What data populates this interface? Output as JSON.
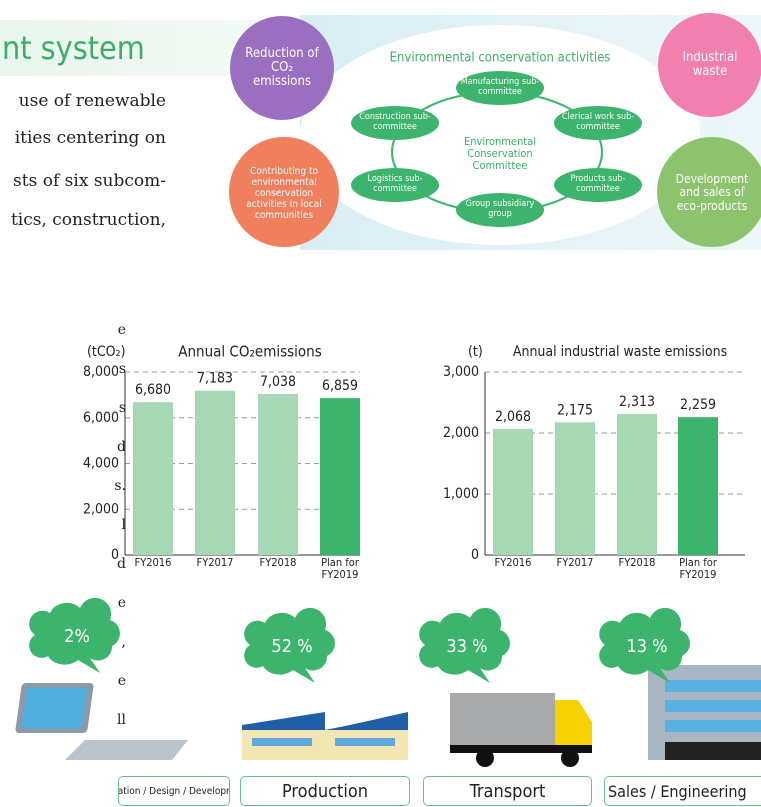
{
  "header": {
    "title": "nt system"
  },
  "intro_lines": [
    "use of renewable",
    "ities centering on",
    "sts of six subcom-",
    "tics, construction,"
  ],
  "diagram": {
    "title": "Environmental conservation activities",
    "center": "Environmental Conservation Committee",
    "committees": [
      "Manufacturing sub-committee",
      "Construction sub-committee",
      "Clerical work sub-committee",
      "Logistics sub-committee",
      "Products sub-committee",
      "Group subsidiary group"
    ],
    "outer": [
      "Reduction of CO₂ emissions",
      "Contributing to environmental conservation activities in local communities",
      "Industrial waste",
      "Development and sales of eco-products"
    ]
  },
  "side_fragments": [
    "e",
    "s",
    "s",
    "d",
    "s.",
    "l",
    "d",
    "e",
    ",",
    "e",
    "ll"
  ],
  "chart_data": [
    {
      "type": "bar",
      "title": "Annual CO₂emissions",
      "y_label": "(tCO₂)",
      "categories": [
        "FY2016",
        "FY2017",
        "FY2018",
        "Plan for FY2019"
      ],
      "values": [
        6680,
        7183,
        7038,
        6859
      ],
      "value_labels": [
        "6,680",
        "7,183",
        "7,038",
        "6,859"
      ],
      "colors": [
        "#a6d8b6",
        "#a6d8b6",
        "#a6d8b6",
        "#3cb46e"
      ],
      "ylim": [
        0,
        8000
      ],
      "yticks": [
        0,
        {
          "value": 2000,
          "label": "2,000"
        },
        {
          "value": 4000,
          "label": "4,000"
        },
        {
          "value": 6000,
          "label": "6,000"
        },
        {
          "value": 8000,
          "label": "8,000"
        }
      ],
      "grid": true
    },
    {
      "type": "bar",
      "title": "Annual industrial waste emissions",
      "y_label": "(t)",
      "categories": [
        "FY2016",
        "FY2017",
        "FY2018",
        "Plan for FY2019"
      ],
      "values": [
        2068,
        2175,
        2313,
        2259
      ],
      "value_labels": [
        "2,068",
        "2,175",
        "2,313",
        "2,259"
      ],
      "colors": [
        "#a6d8b6",
        "#a6d8b6",
        "#a6d8b6",
        "#3cb46e"
      ],
      "ylim": [
        0,
        3000
      ],
      "yticks": [
        0,
        {
          "value": 1000,
          "label": "1,000"
        },
        {
          "value": 2000,
          "label": "2,000"
        },
        {
          "value": 3000,
          "label": "3,000"
        }
      ],
      "grid": true
    }
  ],
  "shares": [
    {
      "value": "2%",
      "label": "Administration / Design / Development sites"
    },
    {
      "value": "52 %",
      "label": "Production"
    },
    {
      "value": "33 %",
      "label": "Transport"
    },
    {
      "value": "13 %",
      "label": "Sales / Engineering"
    }
  ]
}
